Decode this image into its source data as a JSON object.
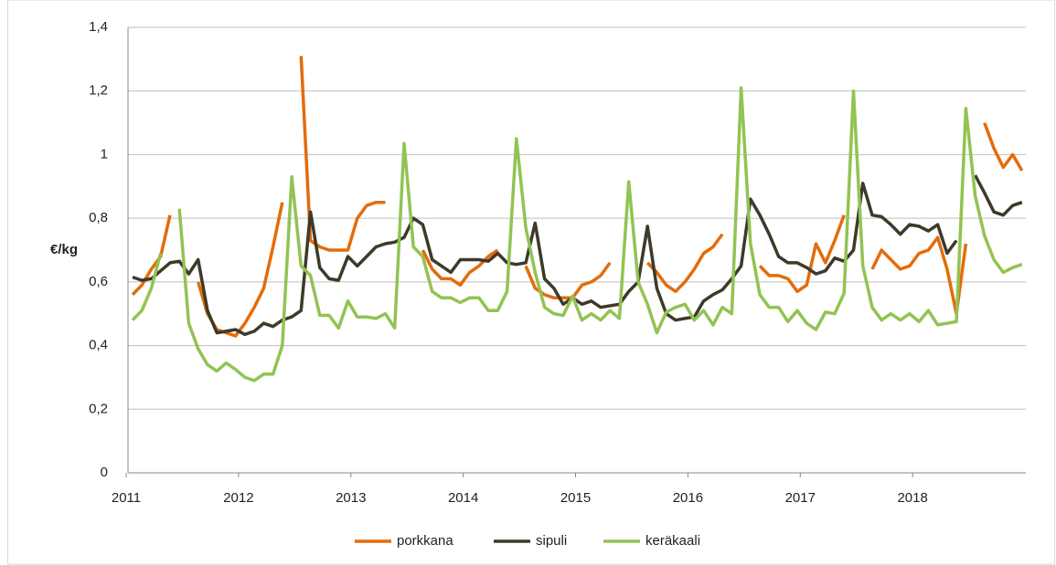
{
  "chart_data": {
    "type": "line",
    "ylabel": "€/kg",
    "categories": [
      "2011",
      null,
      null,
      null,
      null,
      null,
      null,
      null,
      null,
      null,
      null,
      null,
      "2012",
      null,
      null,
      null,
      null,
      null,
      null,
      null,
      null,
      null,
      null,
      null,
      "2013",
      null,
      null,
      null,
      null,
      null,
      null,
      null,
      null,
      null,
      null,
      null,
      "2014",
      null,
      null,
      null,
      null,
      null,
      null,
      null,
      null,
      null,
      null,
      null,
      "2015",
      null,
      null,
      null,
      null,
      null,
      null,
      null,
      null,
      null,
      null,
      null,
      "2016",
      null,
      null,
      null,
      null,
      null,
      null,
      null,
      null,
      null,
      null,
      null,
      "2017",
      null,
      null,
      null,
      null,
      null,
      null,
      null,
      null,
      null,
      null,
      null,
      "2018",
      null,
      null,
      null,
      null,
      null,
      null,
      null,
      null,
      null,
      null,
      null
    ],
    "series": [
      {
        "name": "porkkana",
        "color": "#e46c0a",
        "values": [
          0.56,
          0.59,
          0.64,
          0.68,
          0.81,
          null,
          null,
          0.6,
          0.5,
          0.45,
          0.44,
          0.43,
          0.47,
          0.52,
          0.58,
          0.71,
          0.85,
          null,
          1.31,
          0.73,
          0.71,
          0.7,
          0.7,
          0.7,
          0.8,
          0.84,
          0.85,
          0.85,
          null,
          null,
          null,
          0.7,
          0.64,
          0.61,
          0.61,
          0.59,
          0.63,
          0.65,
          0.68,
          0.7,
          null,
          null,
          0.65,
          0.58,
          0.56,
          0.55,
          0.55,
          0.55,
          0.59,
          0.6,
          0.62,
          0.66,
          null,
          null,
          null,
          0.66,
          0.63,
          0.59,
          0.57,
          0.6,
          0.64,
          0.69,
          0.71,
          0.75,
          null,
          null,
          null,
          0.65,
          0.62,
          0.62,
          0.61,
          0.57,
          0.59,
          0.72,
          0.66,
          0.73,
          0.81,
          null,
          null,
          0.64,
          0.7,
          0.67,
          0.64,
          0.65,
          0.69,
          0.7,
          0.74,
          0.64,
          0.5,
          0.72,
          null,
          1.1,
          1.02,
          0.96,
          1.0,
          0.95
        ]
      },
      {
        "name": "sipuli",
        "color": "#3d3a2a",
        "values": [
          0.615,
          0.605,
          0.61,
          0.635,
          0.66,
          0.665,
          0.625,
          0.67,
          0.51,
          0.44,
          0.445,
          0.45,
          0.435,
          0.445,
          0.47,
          0.46,
          0.48,
          0.49,
          0.51,
          0.82,
          0.645,
          0.61,
          0.605,
          0.68,
          0.65,
          0.68,
          0.71,
          0.72,
          0.725,
          0.74,
          0.8,
          0.78,
          0.67,
          0.65,
          0.63,
          0.67,
          0.67,
          0.67,
          0.665,
          0.69,
          0.66,
          0.655,
          0.66,
          0.785,
          0.61,
          0.58,
          0.53,
          0.55,
          0.53,
          0.54,
          0.52,
          0.525,
          0.53,
          0.57,
          0.6,
          0.775,
          0.58,
          0.5,
          0.48,
          0.485,
          0.49,
          0.54,
          0.56,
          0.575,
          0.61,
          0.65,
          0.86,
          0.81,
          0.75,
          0.68,
          0.66,
          0.66,
          0.645,
          0.625,
          0.635,
          0.675,
          0.665,
          0.7,
          0.91,
          0.81,
          0.805,
          0.78,
          0.75,
          0.78,
          0.775,
          0.76,
          0.78,
          0.69,
          0.73,
          null,
          0.935,
          0.88,
          0.82,
          0.81,
          0.84,
          0.85
        ]
      },
      {
        "name": "keräkaali",
        "color": "#92c353",
        "values": [
          0.48,
          0.51,
          0.58,
          0.69,
          null,
          0.83,
          0.47,
          0.39,
          0.34,
          0.32,
          0.345,
          0.325,
          0.3,
          0.29,
          0.31,
          0.31,
          0.4,
          0.93,
          0.65,
          0.62,
          0.495,
          0.495,
          0.455,
          0.54,
          0.49,
          0.49,
          0.485,
          0.5,
          0.455,
          1.035,
          0.71,
          0.68,
          0.57,
          0.55,
          0.55,
          0.535,
          0.55,
          0.55,
          0.51,
          0.51,
          0.57,
          1.05,
          0.77,
          0.63,
          0.52,
          0.5,
          0.495,
          0.555,
          0.48,
          0.5,
          0.48,
          0.51,
          0.485,
          0.915,
          0.6,
          0.53,
          0.44,
          0.505,
          0.52,
          0.53,
          0.48,
          0.51,
          0.465,
          0.52,
          0.5,
          1.21,
          0.72,
          0.56,
          0.52,
          0.52,
          0.475,
          0.51,
          0.47,
          0.45,
          0.505,
          0.5,
          0.565,
          1.2,
          0.65,
          0.52,
          0.48,
          0.5,
          0.48,
          0.5,
          0.475,
          0.51,
          0.465,
          0.47,
          0.475,
          1.145,
          0.87,
          0.745,
          0.67,
          0.63,
          0.645,
          0.655
        ]
      }
    ],
    "ylim": [
      0,
      1.4
    ],
    "yticks": [
      0,
      {
        "value": 0.2,
        "label": "0,2"
      },
      {
        "value": 0.4,
        "label": "0,4"
      },
      {
        "value": 0.6,
        "label": "0,6"
      },
      {
        "value": 0.8,
        "label": "0,8"
      },
      1,
      {
        "value": 1.2,
        "label": "1,2"
      },
      {
        "value": 1.4,
        "label": "1,4"
      }
    ],
    "grid": true,
    "legend": "bottom"
  }
}
